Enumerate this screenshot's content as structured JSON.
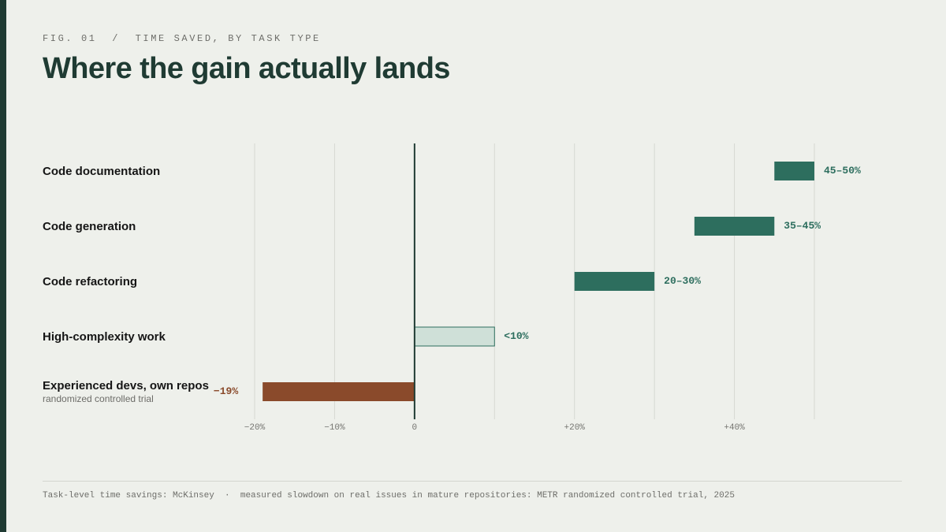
{
  "header": {
    "kicker": "FIG. 01  /  TIME SAVED, BY TASK TYPE",
    "title": "Where the gain actually lands"
  },
  "colors": {
    "positive": "#2d6e5e",
    "positive_light": "#cfe0d8",
    "negative": "#8a4a2b",
    "axis": "#1f3b33",
    "grid": "#d6d8d2"
  },
  "chart_data": {
    "type": "bar",
    "orientation": "horizontal",
    "categories": [
      "Code documentation",
      "Code generation",
      "Code refactoring",
      "High-complexity work",
      "Experienced devs, own repos"
    ],
    "category_notes": [
      "",
      "",
      "",
      "",
      "randomized controlled trial"
    ],
    "ranges": [
      [
        45,
        50
      ],
      [
        35,
        45
      ],
      [
        20,
        30
      ],
      [
        0,
        10
      ],
      [
        -19,
        0
      ]
    ],
    "value_labels": [
      "45–50%",
      "35–45%",
      "20–30%",
      "<10%",
      "−19%"
    ],
    "styles": [
      "positive",
      "positive",
      "positive",
      "positive_light",
      "negative"
    ],
    "xlim": [
      -20,
      50
    ],
    "gridlines": [
      -20,
      -10,
      0,
      10,
      20,
      30,
      40,
      50
    ],
    "ticks": [
      -20,
      -10,
      0,
      20,
      40
    ],
    "tick_labels": [
      "−20%",
      "−10%",
      "0",
      "+20%",
      "+40%"
    ],
    "xlabel": "",
    "ylabel": ""
  },
  "footer": {
    "source": "Task-level time savings: McKinsey  ·  measured slowdown on real issues in mature repositories: METR randomized controlled trial, 2025"
  }
}
